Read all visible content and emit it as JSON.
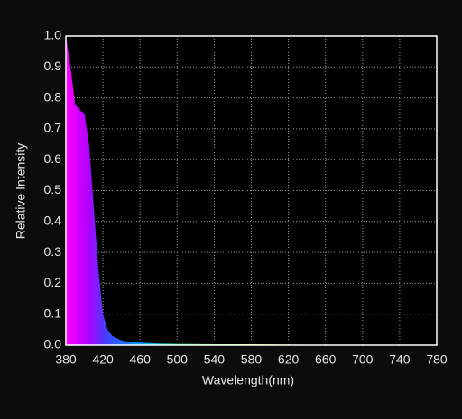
{
  "chart_data": {
    "type": "area",
    "x_label": "Wavelength(nm)",
    "y_label": "Relative Intensity",
    "x": [
      380,
      385,
      390,
      395,
      400,
      405,
      410,
      415,
      420,
      425,
      430,
      440,
      450,
      460,
      480,
      500,
      540,
      580,
      620,
      660,
      700,
      780
    ],
    "values": [
      1.0,
      0.9,
      0.78,
      0.76,
      0.75,
      0.65,
      0.45,
      0.25,
      0.1,
      0.05,
      0.03,
      0.015,
      0.01,
      0.008,
      0.005,
      0.004,
      0.003,
      0.003,
      0.002,
      0.001,
      0.001,
      0
    ],
    "xlim": [
      380,
      780
    ],
    "xticks": [
      380,
      420,
      460,
      500,
      540,
      580,
      620,
      660,
      700,
      740,
      780
    ],
    "ylim": [
      0,
      1
    ],
    "yticks": [
      {
        "value": 0,
        "label": "0.0"
      },
      0.1,
      0.2,
      0.3,
      0.4,
      0.5,
      0.6,
      0.7,
      0.8,
      0.9,
      {
        "value": 1,
        "label": "1.0"
      }
    ],
    "grid": true
  }
}
